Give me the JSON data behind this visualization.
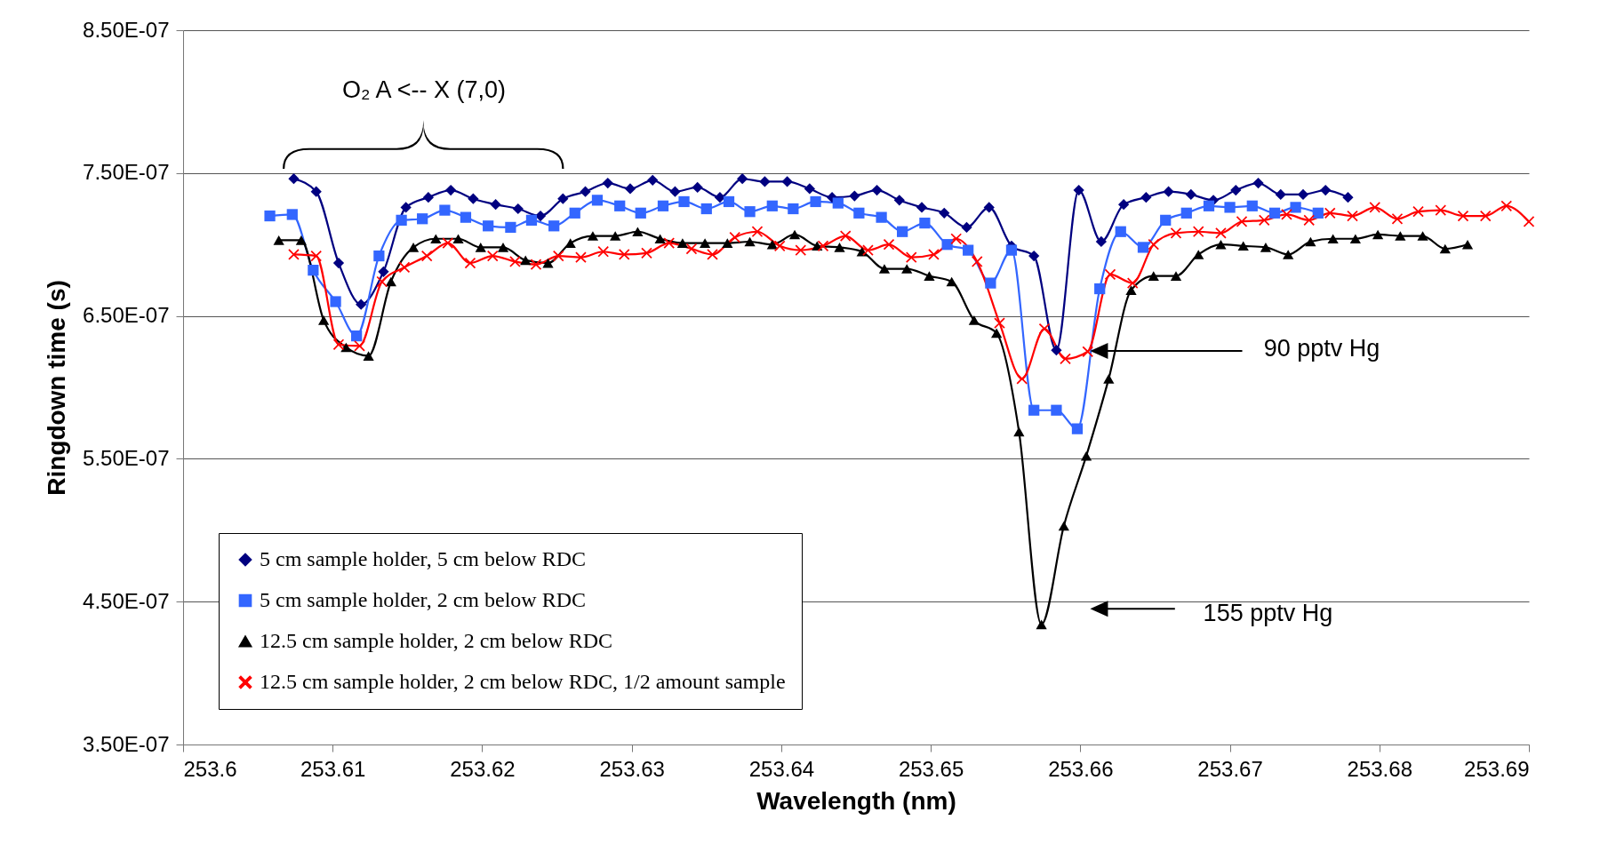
{
  "chart_data": {
    "type": "line",
    "xlabel": "Wavelength (nm)",
    "ylabel": "Ringdown time (s)",
    "xlim": [
      253.6,
      253.69
    ],
    "xticks": [
      253.6,
      253.61,
      253.62,
      253.63,
      253.64,
      253.65,
      253.66,
      253.67,
      253.68,
      253.69
    ],
    "ylim": [
      3.5e-07,
      8.5e-07
    ],
    "yticks": [
      {
        "value": 3.5e-07,
        "label": "3.50E-07"
      },
      {
        "value": 4.5e-07,
        "label": "4.50E-07"
      },
      {
        "value": 5.5e-07,
        "label": "5.50E-07"
      },
      {
        "value": 6.5e-07,
        "label": "6.50E-07"
      },
      {
        "value": 7.5e-07,
        "label": "7.50E-07"
      },
      {
        "value": 8.5e-07,
        "label": "8.50E-07"
      }
    ],
    "grid": "y",
    "legend": "bottom left",
    "annotations": [
      "O₂ A <--  X (7,0)",
      "90 pptv Hg",
      "155 pptv Hg"
    ],
    "series": [
      {
        "name": "5 cm sample holder, 5 cm below RDC",
        "color": "#000080",
        "marker": "diamond",
        "x": [
          253.6074,
          253.6089,
          253.6104,
          253.6119,
          253.6134,
          253.6149,
          253.6164,
          253.6179,
          253.6194,
          253.6209,
          253.6224,
          253.6239,
          253.6254,
          253.6269,
          253.6284,
          253.6299,
          253.6314,
          253.6329,
          253.6344,
          253.6359,
          253.6374,
          253.6389,
          253.6404,
          253.6419,
          253.6434,
          253.6449,
          253.6464,
          253.6479,
          253.6494,
          253.6509,
          253.6524,
          253.6539,
          253.6554,
          253.6569,
          253.6584,
          253.6599,
          253.6614,
          253.6629,
          253.6644,
          253.6659,
          253.6674,
          253.6689,
          253.6704,
          253.6719,
          253.6734,
          253.6749,
          253.6764,
          253.6779
        ],
        "values": [
          7.46e-07,
          7.37e-07,
          6.87e-07,
          6.58e-07,
          6.81e-07,
          7.26e-07,
          7.33e-07,
          7.38e-07,
          7.32e-07,
          7.28e-07,
          7.25e-07,
          7.2e-07,
          7.32e-07,
          7.37e-07,
          7.43e-07,
          7.39e-07,
          7.45e-07,
          7.37e-07,
          7.4e-07,
          7.33e-07,
          7.46e-07,
          7.44e-07,
          7.44e-07,
          7.39e-07,
          7.33e-07,
          7.34e-07,
          7.38e-07,
          7.31e-07,
          7.26e-07,
          7.22e-07,
          7.12e-07,
          7.26e-07,
          6.99e-07,
          6.92e-07,
          6.26e-07,
          7.38e-07,
          7.02e-07,
          7.28e-07,
          7.33e-07,
          7.37e-07,
          7.35e-07,
          7.31e-07,
          7.38e-07,
          7.43e-07,
          7.35e-07,
          7.35e-07,
          7.38e-07,
          7.33e-07
        ]
      },
      {
        "name": "5 cm sample holder, 2 cm below RDC",
        "color": "#3366ff",
        "marker": "square",
        "x": [
          253.6058,
          253.6073,
          253.6087,
          253.6102,
          253.6116,
          253.6131,
          253.6146,
          253.616,
          253.6175,
          253.6189,
          253.6204,
          253.6219,
          253.6233,
          253.6248,
          253.6262,
          253.6277,
          253.6292,
          253.6306,
          253.6321,
          253.6335,
          253.635,
          253.6365,
          253.6379,
          253.6394,
          253.6408,
          253.6423,
          253.6438,
          253.6452,
          253.6467,
          253.6481,
          253.6496,
          253.6511,
          253.6525,
          253.654,
          253.6554,
          253.6569,
          253.6584,
          253.6598,
          253.6613,
          253.6627,
          253.6642,
          253.6657,
          253.6671,
          253.6686,
          253.67,
          253.6715,
          253.673,
          253.6744,
          253.6759
        ],
        "values": [
          7.2e-07,
          7.21e-07,
          6.82e-07,
          6.6e-07,
          6.36e-07,
          6.92e-07,
          7.17e-07,
          7.18e-07,
          7.24e-07,
          7.19e-07,
          7.13e-07,
          7.12e-07,
          7.17e-07,
          7.13e-07,
          7.22e-07,
          7.31e-07,
          7.27e-07,
          7.22e-07,
          7.27e-07,
          7.3e-07,
          7.25e-07,
          7.3e-07,
          7.23e-07,
          7.27e-07,
          7.25e-07,
          7.3e-07,
          7.29e-07,
          7.22e-07,
          7.19e-07,
          7.09e-07,
          7.15e-07,
          7e-07,
          6.96e-07,
          6.73e-07,
          6.96e-07,
          5.84e-07,
          5.84e-07,
          5.71e-07,
          6.69e-07,
          7.09e-07,
          6.98e-07,
          7.17e-07,
          7.22e-07,
          7.27e-07,
          7.26e-07,
          7.27e-07,
          7.22e-07,
          7.26e-07,
          7.22e-07
        ]
      },
      {
        "name": "12.5 cm sample holder, 2 cm below RDC",
        "color": "#000000",
        "marker": "triangle",
        "x": [
          253.6064,
          253.6079,
          253.6094,
          253.6109,
          253.6124,
          253.6139,
          253.6154,
          253.6169,
          253.6184,
          253.6199,
          253.6214,
          253.6229,
          253.6244,
          253.6259,
          253.6274,
          253.6289,
          253.6304,
          253.6319,
          253.6334,
          253.6349,
          253.6364,
          253.6379,
          253.6394,
          253.6409,
          253.6424,
          253.6439,
          253.6454,
          253.6469,
          253.6484,
          253.6499,
          253.6514,
          253.6529,
          253.6544,
          253.6559,
          253.6574,
          253.6589,
          253.6604,
          253.6619,
          253.6634,
          253.6649,
          253.6664,
          253.6679,
          253.6694,
          253.6709,
          253.6724,
          253.6739,
          253.6754,
          253.6769,
          253.6784,
          253.6799,
          253.6814,
          253.6829,
          253.6844,
          253.6859
        ],
        "values": [
          7.03e-07,
          7.03e-07,
          6.47e-07,
          6.28e-07,
          6.22e-07,
          6.74e-07,
          6.98e-07,
          7.04e-07,
          7.04e-07,
          6.98e-07,
          6.98e-07,
          6.89e-07,
          6.87e-07,
          7.01e-07,
          7.06e-07,
          7.06e-07,
          7.09e-07,
          7.04e-07,
          7.01e-07,
          7.01e-07,
          7.01e-07,
          7.02e-07,
          7e-07,
          7.07e-07,
          6.99e-07,
          6.98e-07,
          6.95e-07,
          6.83e-07,
          6.83e-07,
          6.78e-07,
          6.74e-07,
          6.47e-07,
          6.38e-07,
          5.69e-07,
          4.34e-07,
          5.03e-07,
          5.52e-07,
          6.06e-07,
          6.68e-07,
          6.78e-07,
          6.78e-07,
          6.93e-07,
          7e-07,
          6.99e-07,
          6.98e-07,
          6.93e-07,
          7.02e-07,
          7.04e-07,
          7.04e-07,
          7.07e-07,
          7.06e-07,
          7.06e-07,
          6.97e-07,
          7e-07
        ]
      },
      {
        "name": "12.5 cm sample holder, 2 cm below RDC, 1/2 amount sample",
        "color": "#ff0000",
        "marker": "cross",
        "x": [
          253.6074,
          253.6089,
          253.6104,
          253.6118,
          253.6133,
          253.6148,
          253.6163,
          253.6177,
          253.6192,
          253.6207,
          253.6222,
          253.6236,
          253.6251,
          253.6266,
          253.6281,
          253.6295,
          253.631,
          253.6325,
          253.634,
          253.6354,
          253.6369,
          253.6384,
          253.6399,
          253.6413,
          253.6428,
          253.6443,
          253.6458,
          253.6472,
          253.6487,
          253.6502,
          253.6517,
          253.6531,
          253.6546,
          253.6561,
          253.6576,
          253.659,
          253.6605,
          253.662,
          253.6635,
          253.6649,
          253.6664,
          253.6679,
          253.6694,
          253.6708,
          253.6723,
          253.6738,
          253.6753,
          253.6767,
          253.6782,
          253.6797,
          253.6812,
          253.6826,
          253.6841,
          253.6856,
          253.6871,
          253.6885,
          253.69
        ],
        "values": [
          6.93e-07,
          6.92e-07,
          6.3e-07,
          6.29e-07,
          6.74e-07,
          6.84e-07,
          6.92e-07,
          7.01e-07,
          6.87e-07,
          6.92e-07,
          6.88e-07,
          6.86e-07,
          6.92e-07,
          6.91e-07,
          6.95e-07,
          6.93e-07,
          6.94e-07,
          7.01e-07,
          6.97e-07,
          6.93e-07,
          7.05e-07,
          7.09e-07,
          6.99e-07,
          6.96e-07,
          6.99e-07,
          7.06e-07,
          6.96e-07,
          7e-07,
          6.91e-07,
          6.93e-07,
          7.04e-07,
          6.88e-07,
          6.45e-07,
          6.06e-07,
          6.41e-07,
          6.2e-07,
          6.25e-07,
          6.79e-07,
          6.73e-07,
          7e-07,
          7.08e-07,
          7.09e-07,
          7.08e-07,
          7.16e-07,
          7.17e-07,
          7.21e-07,
          7.17e-07,
          7.22e-07,
          7.2e-07,
          7.26e-07,
          7.18e-07,
          7.23e-07,
          7.24e-07,
          7.2e-07,
          7.2e-07,
          7.27e-07,
          7.16e-07
        ]
      }
    ]
  }
}
